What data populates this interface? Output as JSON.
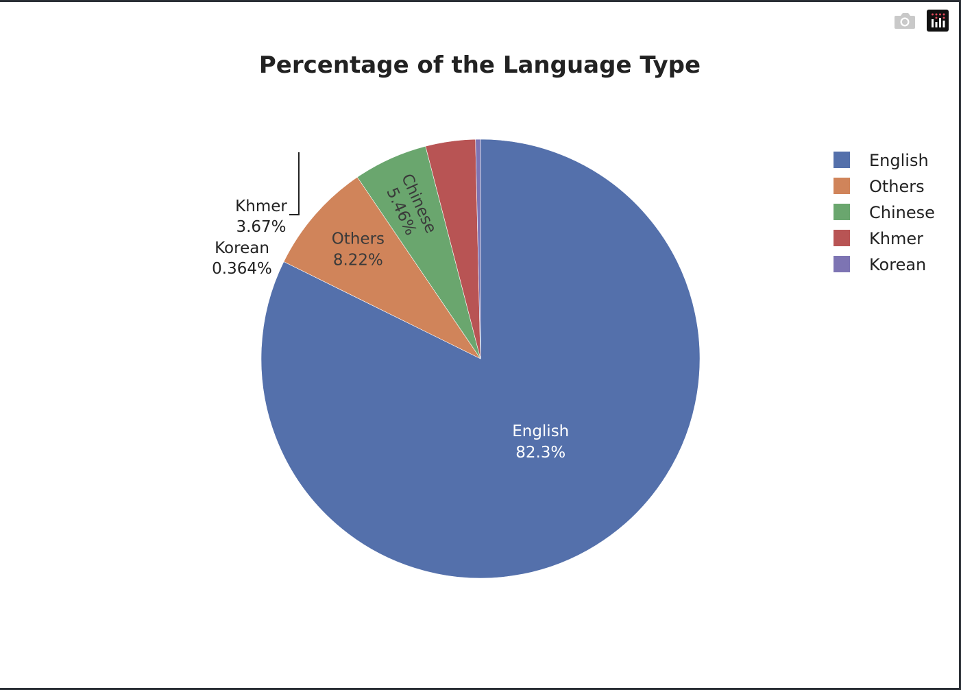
{
  "chart_data": {
    "type": "pie",
    "title": "Percentage of the Language Type",
    "categories": [
      "English",
      "Others",
      "Chinese",
      "Khmer",
      "Korean"
    ],
    "values": [
      82.3,
      8.22,
      5.46,
      3.67,
      0.364
    ],
    "labels": [
      "82.3%",
      "8.22%",
      "5.46%",
      "3.67%",
      "0.364%"
    ],
    "colors": [
      "#5470ab",
      "#d0845a",
      "#6aa66e",
      "#b85454",
      "#7d74b3"
    ],
    "legend_position": "top-right"
  },
  "modebar": {
    "camera_icon": "camera-icon",
    "plotly_logo": "plotly-logo-icon"
  }
}
